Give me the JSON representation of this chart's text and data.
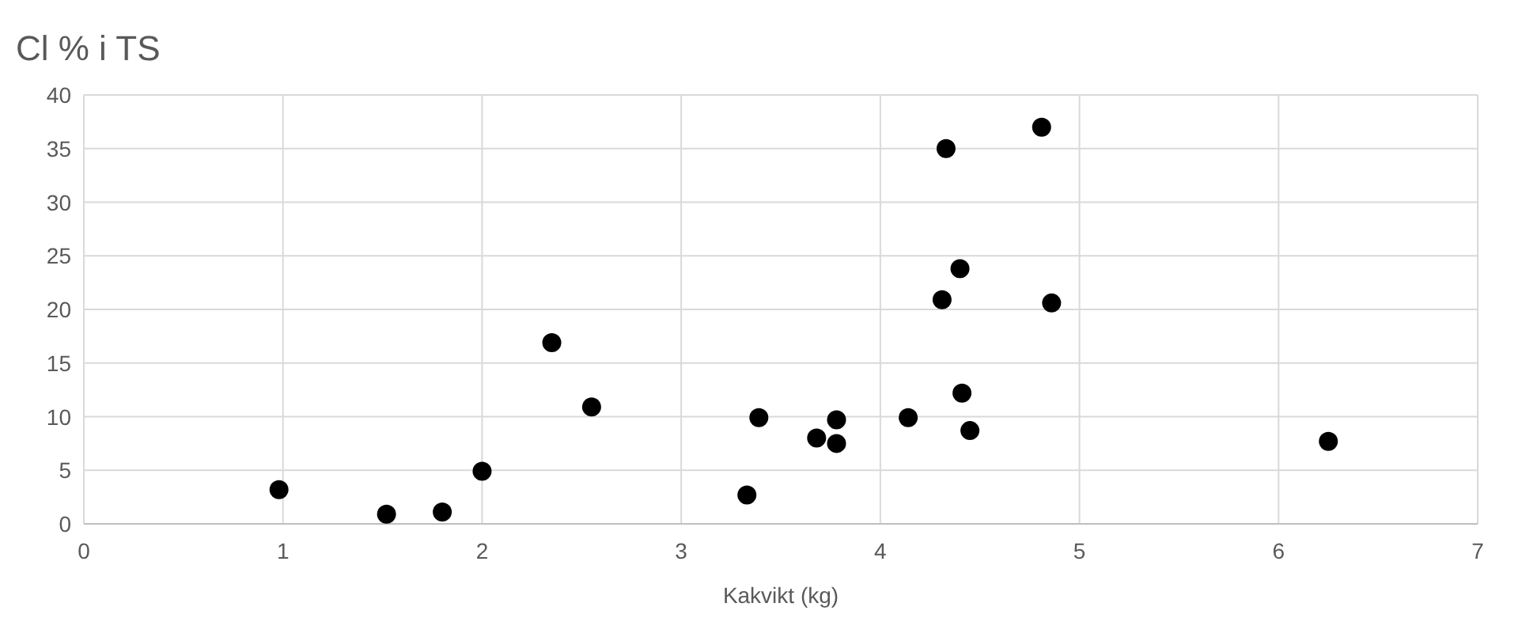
{
  "chart_data": {
    "type": "scatter",
    "title": "Cl % i TS",
    "xlabel": "Kakvikt (kg)",
    "x": [
      0.98,
      1.52,
      1.8,
      2.0,
      2.35,
      2.55,
      3.33,
      3.39,
      3.68,
      3.78,
      3.78,
      4.14,
      4.33,
      4.31,
      4.4,
      4.41,
      4.45,
      4.81,
      4.86,
      6.25
    ],
    "values": [
      3.2,
      0.9,
      1.1,
      4.9,
      16.9,
      10.9,
      2.7,
      9.9,
      8.0,
      9.7,
      7.5,
      9.9,
      35.0,
      20.9,
      23.8,
      12.2,
      8.7,
      37.0,
      20.6,
      7.7
    ],
    "color": "#000000",
    "marker": "circle",
    "grid": true,
    "xlim": [
      0,
      7
    ],
    "xticks": [
      0,
      1,
      2,
      3,
      4,
      5,
      6,
      7
    ],
    "ylim": [
      0,
      40
    ],
    "yticks": [
      0,
      5,
      10,
      15,
      20,
      25,
      30,
      35,
      40
    ]
  }
}
